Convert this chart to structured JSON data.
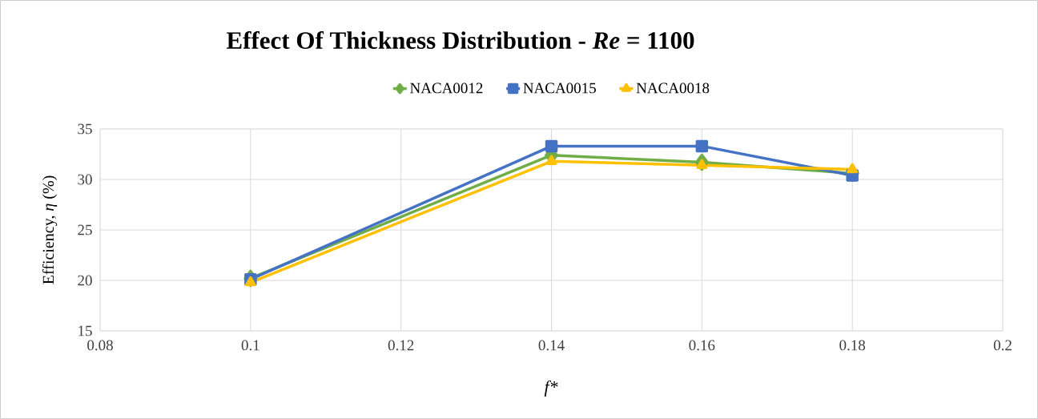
{
  "chart_data": {
    "type": "line",
    "title": "Effect Of Thickness Distribution - *Re* = 1100",
    "xlabel": "f*",
    "ylabel": "Efficiency, *η* (%)",
    "x": [
      0.1,
      0.14,
      0.16,
      0.18
    ],
    "series": [
      {
        "name": "NACA0012",
        "color": "#70ad47",
        "marker": "diamond",
        "values": [
          20.2,
          32.4,
          31.7,
          30.6
        ]
      },
      {
        "name": "NACA0015",
        "color": "#4472c4",
        "marker": "square",
        "values": [
          20.1,
          33.3,
          33.3,
          30.4
        ]
      },
      {
        "name": "NACA0018",
        "color": "#ffc000",
        "marker": "triangle",
        "values": [
          19.8,
          31.8,
          31.4,
          31.0
        ]
      }
    ],
    "xlim": [
      0.08,
      0.2
    ],
    "xticks": [
      0.08,
      0.1,
      0.12,
      0.14,
      0.16,
      0.18,
      0.2
    ],
    "ylim": [
      15,
      35
    ],
    "yticks": [
      15,
      20,
      25,
      30,
      35
    ],
    "grid": true,
    "legend": "top",
    "line_style": "solid"
  }
}
